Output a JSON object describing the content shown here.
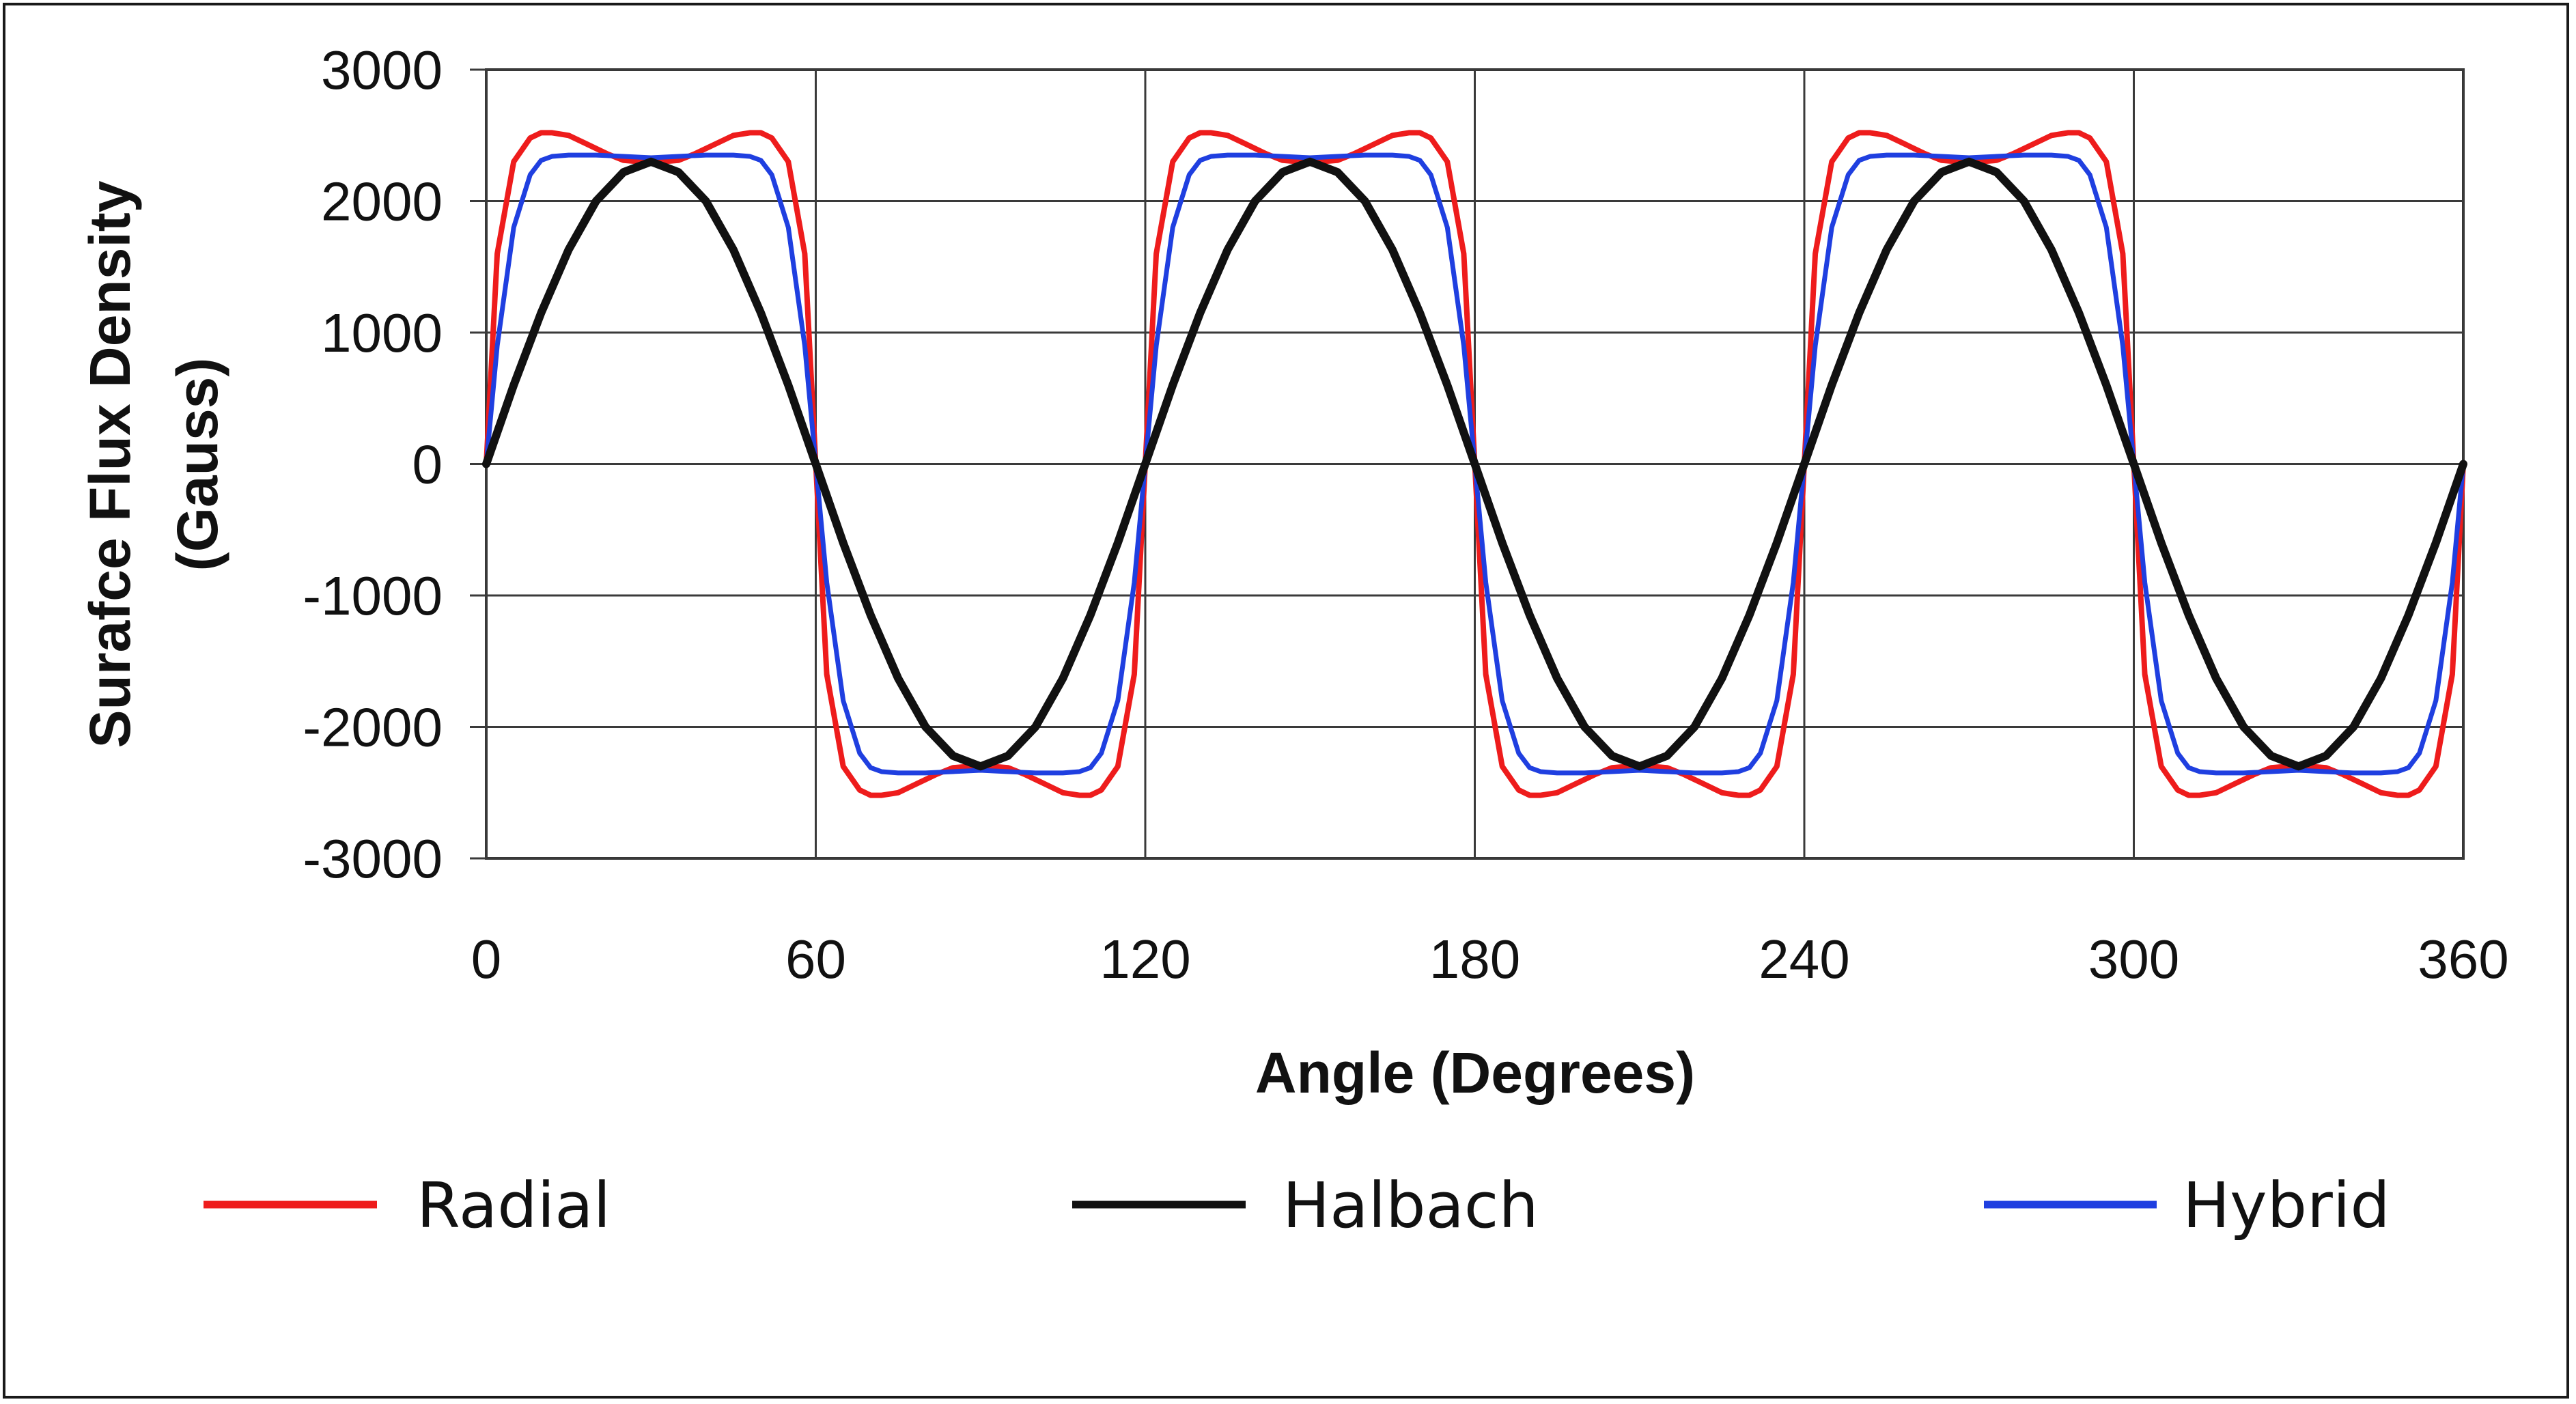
{
  "chart_data": {
    "type": "line",
    "xlabel": "Angle (Degrees)",
    "ylabel_line1": "Surafce Flux Density",
    "ylabel_line2": "(Gauss)",
    "xlim": [
      0,
      360
    ],
    "ylim": [
      -3000,
      3000
    ],
    "xticks": [
      "0",
      "60",
      "120",
      "180",
      "240",
      "300",
      "360"
    ],
    "yticks": [
      "3000",
      "2000",
      "1000",
      "0",
      "-1000",
      "-2000",
      "-3000"
    ],
    "grid": true,
    "legend_position": "bottom",
    "series": [
      {
        "name": "Radial",
        "color": "#ee1c1c",
        "period_deg": 120,
        "x": [
          0,
          2,
          5,
          8,
          10,
          12,
          15,
          18,
          22,
          25,
          28,
          30,
          32,
          35,
          38,
          42,
          45,
          48,
          50,
          52,
          55,
          58,
          60,
          62,
          65,
          68,
          70,
          72,
          75,
          78,
          82,
          85,
          88,
          90,
          92,
          95,
          98,
          102,
          105,
          108,
          110,
          112,
          115,
          118,
          120
        ],
        "values": [
          0,
          1600,
          2300,
          2480,
          2520,
          2520,
          2500,
          2440,
          2360,
          2310,
          2300,
          2300,
          2300,
          2310,
          2360,
          2440,
          2500,
          2520,
          2520,
          2480,
          2300,
          1600,
          0,
          -1600,
          -2300,
          -2480,
          -2520,
          -2520,
          -2500,
          -2440,
          -2360,
          -2310,
          -2300,
          -2300,
          -2300,
          -2310,
          -2360,
          -2440,
          -2500,
          -2520,
          -2520,
          -2480,
          -2300,
          -1600,
          0
        ]
      },
      {
        "name": "Halbach",
        "color": "#111111",
        "period_deg": 120,
        "x": [
          0,
          5,
          10,
          15,
          20,
          25,
          30,
          35,
          40,
          45,
          50,
          55,
          60,
          65,
          70,
          75,
          80,
          85,
          90,
          95,
          100,
          105,
          110,
          115,
          120
        ],
        "values": [
          0,
          600,
          1150,
          1630,
          2000,
          2220,
          2300,
          2220,
          2000,
          1630,
          1150,
          600,
          0,
          -600,
          -1150,
          -1630,
          -2000,
          -2220,
          -2300,
          -2220,
          -2000,
          -1630,
          -1150,
          -600,
          0
        ]
      },
      {
        "name": "Hybrid",
        "color": "#1f3fe0",
        "period_deg": 120,
        "x": [
          0,
          2,
          5,
          8,
          10,
          12,
          15,
          20,
          25,
          30,
          35,
          40,
          45,
          48,
          50,
          52,
          55,
          58,
          60,
          62,
          65,
          68,
          70,
          72,
          75,
          80,
          85,
          90,
          95,
          100,
          105,
          108,
          110,
          112,
          115,
          118,
          120
        ],
        "values": [
          0,
          900,
          1800,
          2200,
          2310,
          2340,
          2350,
          2350,
          2340,
          2330,
          2340,
          2350,
          2350,
          2340,
          2310,
          2200,
          1800,
          900,
          0,
          -900,
          -1800,
          -2200,
          -2310,
          -2340,
          -2350,
          -2350,
          -2340,
          -2330,
          -2340,
          -2350,
          -2350,
          -2340,
          -2310,
          -2200,
          -1800,
          -900,
          0
        ]
      }
    ]
  }
}
